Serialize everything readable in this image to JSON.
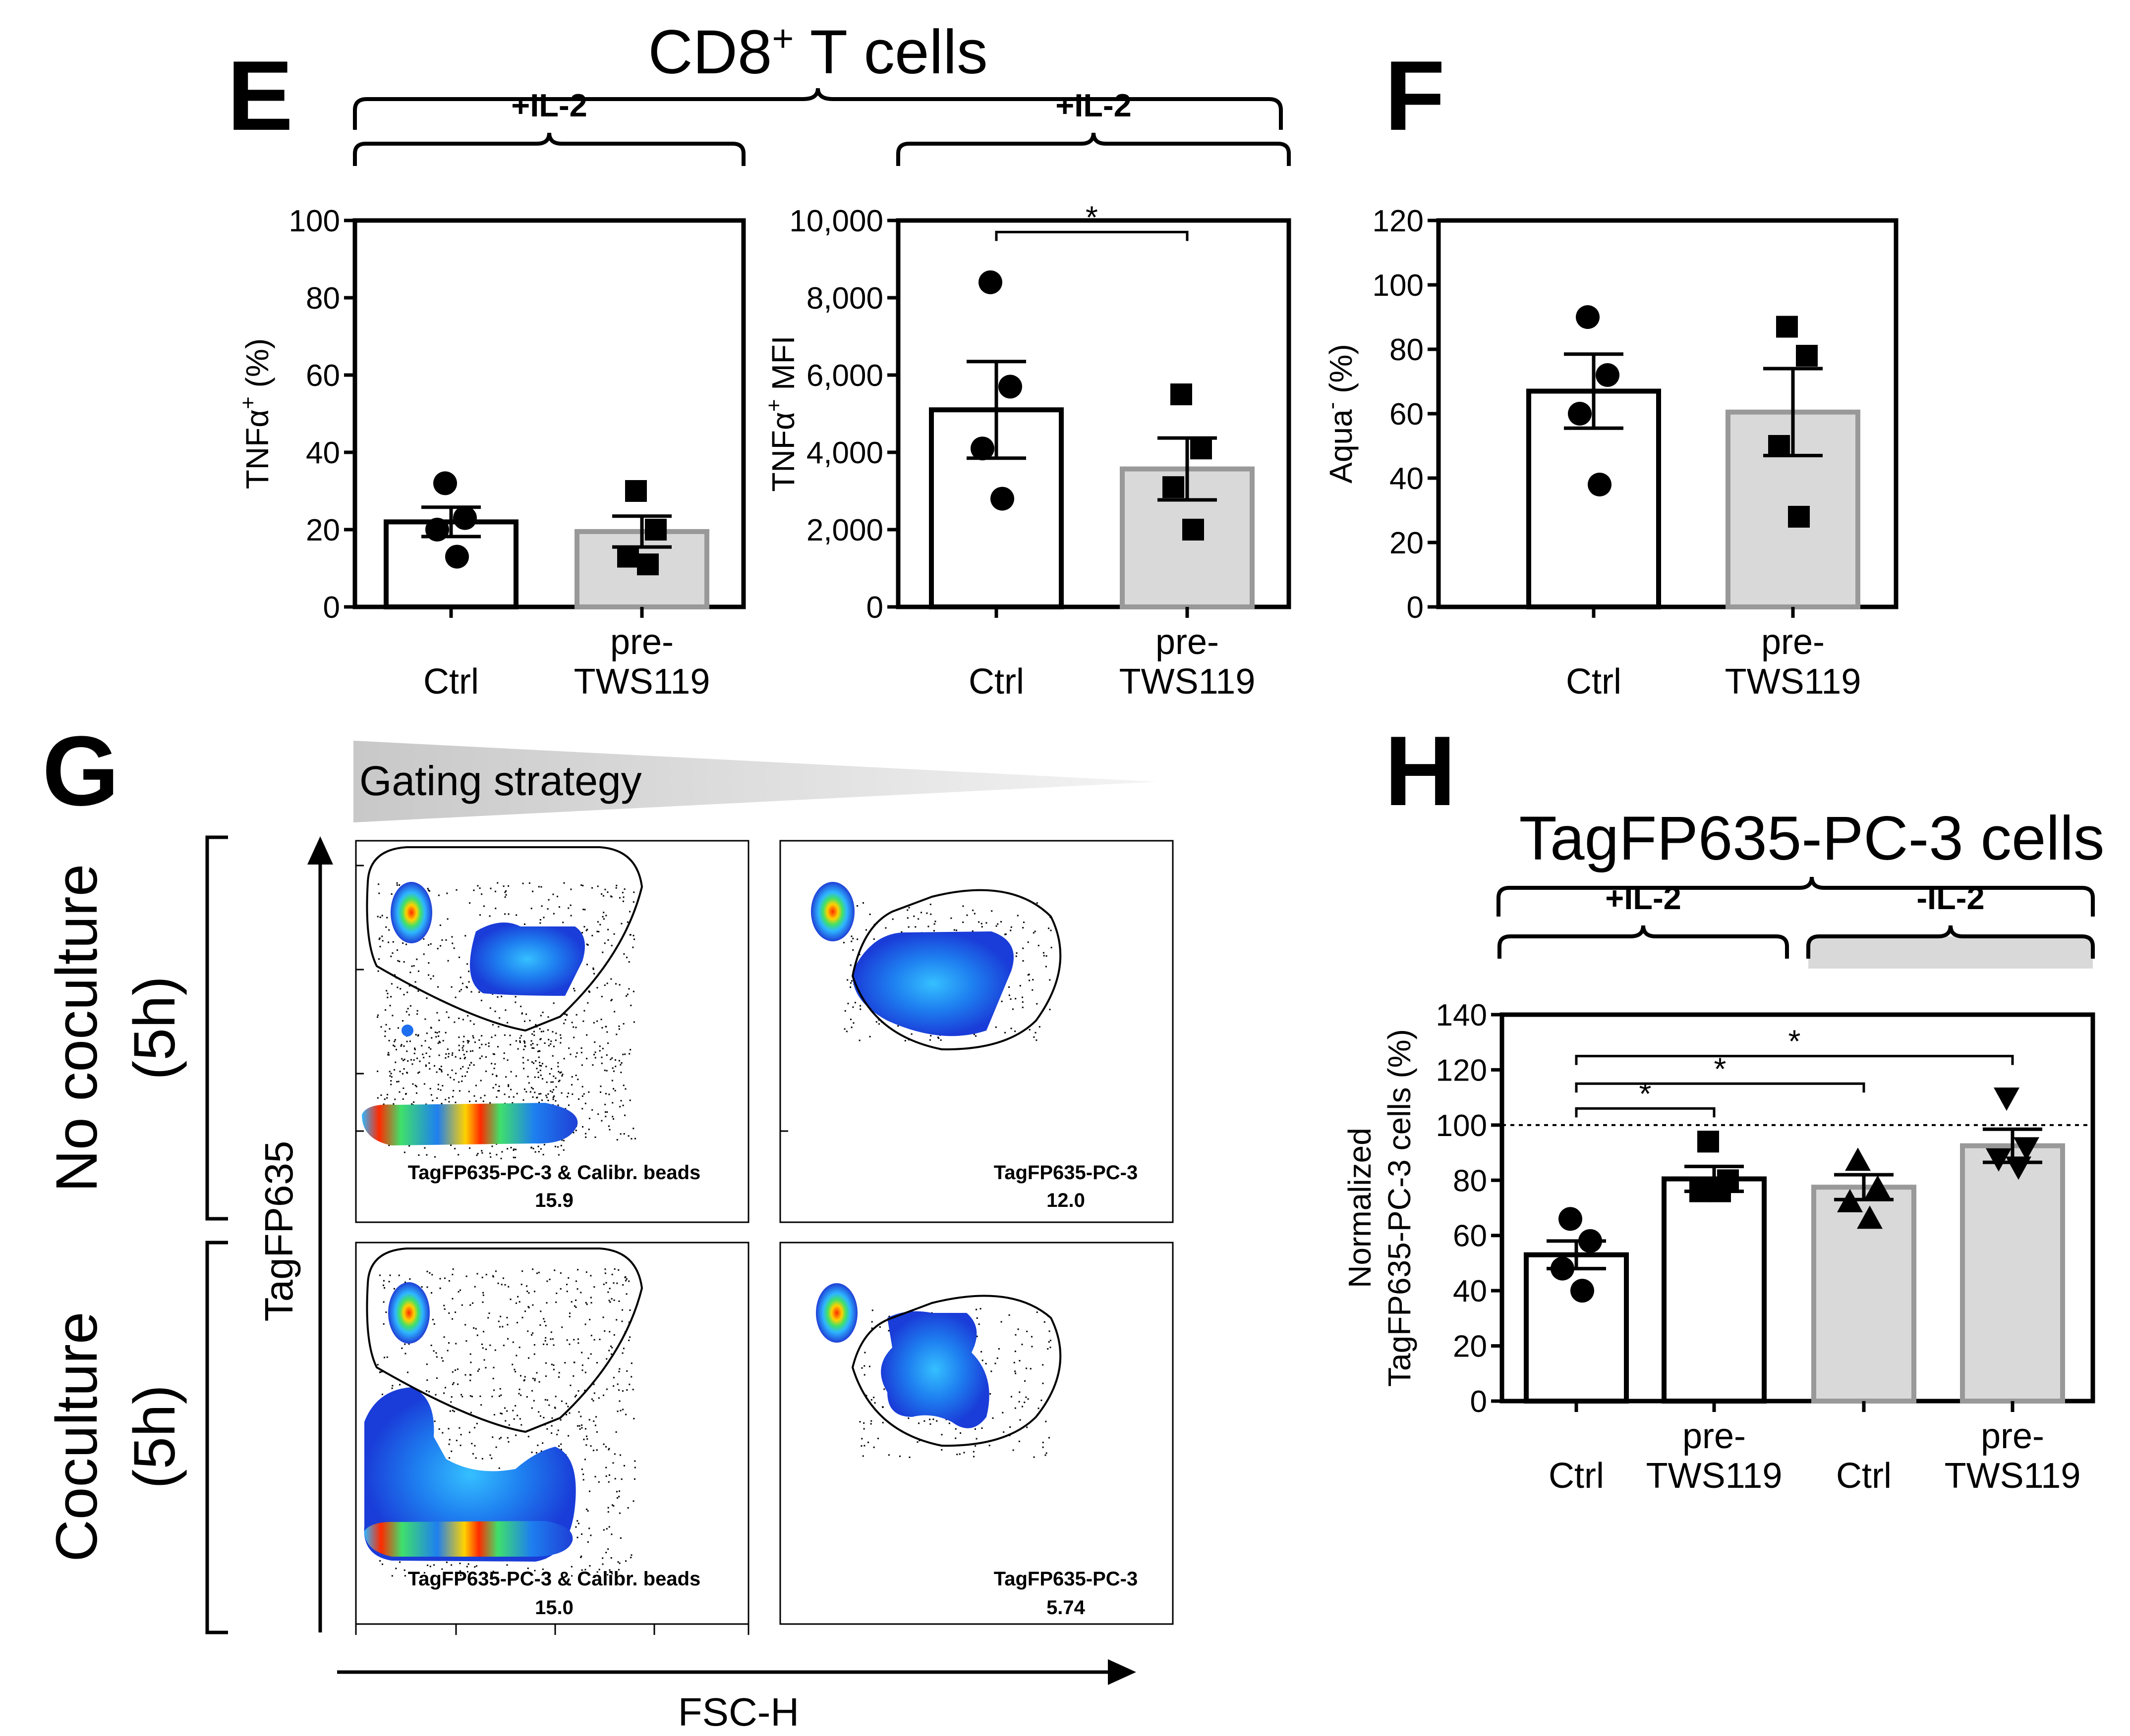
{
  "colors": {
    "white_bar": "#ffffff",
    "gray_bar": "#d9d9d9",
    "gray_edge": "#999999",
    "black": "#000000",
    "density_low": "#1f3fd6",
    "density_mid": "#2fb7ff",
    "density_hot": "#ff2a00"
  },
  "panel_E": {
    "letter": "E",
    "title_main": "CD8",
    "title_sup": "+",
    "title_rest": " T cells"
  },
  "panel_F": {
    "letter": "F"
  },
  "panel_G": {
    "letter": "G",
    "gating_label": "Gating strategy",
    "row1_line1": "No coculture",
    "row1_line2": "(5h)",
    "row2_line1": "Coculture",
    "row2_line2": "(5h)",
    "y_axis": "TagFP635",
    "x_axis": "FSC-H",
    "plots": [
      {
        "gate": "TagFP635-PC-3 & Calibr. beads",
        "value": "15.9"
      },
      {
        "gate": "TagFP635-PC-3",
        "value": "12.0"
      },
      {
        "gate": "TagFP635-PC-3 & Calibr. beads",
        "value": "15.0"
      },
      {
        "gate": "TagFP635-PC-3",
        "value": "5.74"
      }
    ]
  },
  "panel_H": {
    "letter": "H",
    "title": "TagFP635-PC-3 cells"
  },
  "chart_data": [
    {
      "type": "bar",
      "id": "E1",
      "bracket": "+IL-2",
      "ylabel_main": "TNFα",
      "ylabel_sup": "+",
      "ylabel_rest": " (%)",
      "ylim": [
        0,
        100
      ],
      "yticks": [
        "0",
        "20",
        "40",
        "60",
        "80",
        "100"
      ],
      "categories": [
        [
          "Ctrl"
        ],
        [
          "pre-",
          "TWS119"
        ]
      ],
      "means": [
        22,
        19.5
      ],
      "sem": [
        3.8,
        4.0
      ],
      "points": [
        [
          32,
          23,
          20,
          13
        ],
        [
          30,
          20,
          13,
          11
        ]
      ],
      "fills": [
        "white",
        "gray"
      ],
      "markers": [
        "circle",
        "square"
      ],
      "significance": []
    },
    {
      "type": "bar",
      "id": "E2",
      "bracket": "+IL-2",
      "ylabel_main": "TNFα",
      "ylabel_sup": "+",
      "ylabel_rest": " MFI",
      "ylim": [
        0,
        10000
      ],
      "yticks": [
        "0",
        "2,000",
        "4,000",
        "6,000",
        "8,000",
        "10,000"
      ],
      "categories": [
        [
          "Ctrl"
        ],
        [
          "pre-",
          "TWS119"
        ]
      ],
      "means": [
        5100,
        3570
      ],
      "sem": [
        1250,
        800
      ],
      "points": [
        [
          8400,
          5700,
          4100,
          2800
        ],
        [
          5500,
          4100,
          3100,
          2000
        ]
      ],
      "fills": [
        "white",
        "gray"
      ],
      "markers": [
        "circle",
        "square"
      ],
      "significance": [
        {
          "from": 0,
          "to": 1,
          "level": 9700,
          "label": "*"
        }
      ]
    },
    {
      "type": "bar",
      "id": "F",
      "ylabel_main": "Aqua",
      "ylabel_sup": "-",
      "ylabel_rest": " (%)",
      "ylim": [
        0,
        120
      ],
      "yticks": [
        "0",
        "20",
        "40",
        "60",
        "80",
        "100",
        "120"
      ],
      "categories": [
        [
          "Ctrl"
        ],
        [
          "pre-",
          "TWS119"
        ]
      ],
      "means": [
        67,
        60.5
      ],
      "sem": [
        11.5,
        13.5
      ],
      "points": [
        [
          90,
          72,
          60,
          38
        ],
        [
          87,
          78,
          50,
          28
        ]
      ],
      "fills": [
        "white",
        "gray"
      ],
      "markers": [
        "circle",
        "square"
      ],
      "significance": []
    },
    {
      "type": "bar",
      "id": "H",
      "brackets": [
        "+IL-2",
        "-IL-2"
      ],
      "ylabel_line1": "Normalized",
      "ylabel_line2": "TagFP635-PC-3 cells (%)",
      "ylim": [
        0,
        140
      ],
      "yticks": [
        "0",
        "20",
        "40",
        "60",
        "80",
        "100",
        "120",
        "140"
      ],
      "reference_line": 100,
      "categories": [
        [
          "Ctrl"
        ],
        [
          "pre-",
          "TWS119"
        ],
        [
          "Ctrl"
        ],
        [
          "pre-",
          "TWS119"
        ]
      ],
      "means": [
        53,
        80.5,
        77.5,
        92.5
      ],
      "sem": [
        5.0,
        4.5,
        4.5,
        6.0
      ],
      "points": [
        [
          66,
          58,
          48,
          40
        ],
        [
          94,
          80,
          76,
          76
        ],
        [
          87,
          77,
          72,
          66
        ],
        [
          110,
          92,
          88,
          85
        ]
      ],
      "fills": [
        "white",
        "white",
        "gray",
        "gray"
      ],
      "markers": [
        "circle",
        "square",
        "triangle",
        "triangle-down"
      ],
      "significance": [
        {
          "from": 0,
          "to": 1,
          "level": 106,
          "label": "*"
        },
        {
          "from": 0,
          "to": 2,
          "level": 115,
          "label": "*"
        },
        {
          "from": 0,
          "to": 3,
          "level": 125,
          "label": "*"
        }
      ]
    }
  ]
}
